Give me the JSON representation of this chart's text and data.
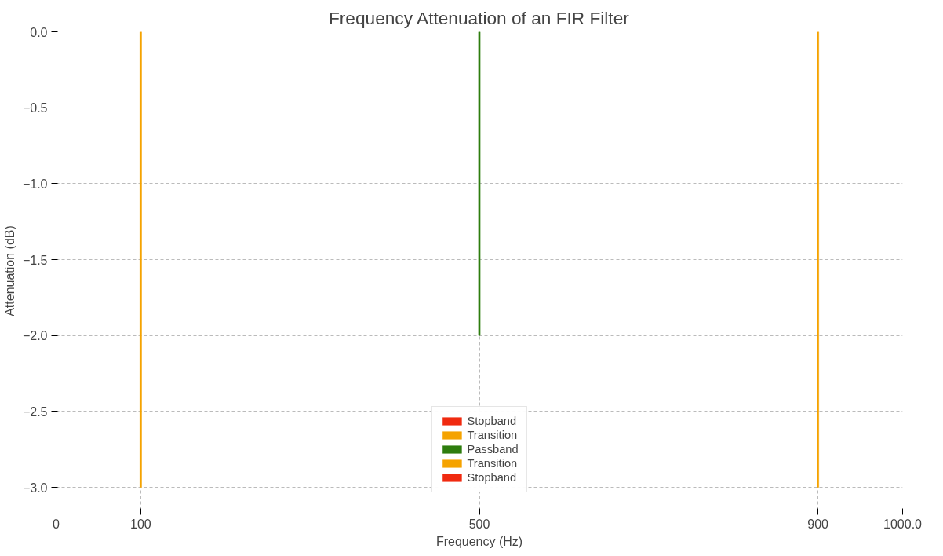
{
  "chart_data": {
    "type": "bar",
    "title": "Frequency Attenuation of an FIR Filter",
    "xlabel": "Frequency (Hz)",
    "ylabel": "Attenuation (dB)",
    "series": [
      {
        "name": "Stopband",
        "color": "#f02a10"
      },
      {
        "name": "Transition",
        "color": "#f5a300",
        "x": [
          100
        ],
        "values": [
          -3.0
        ]
      },
      {
        "name": "Passband",
        "color": "#2e7d0e",
        "x": [
          500
        ],
        "values": [
          -2.0
        ]
      },
      {
        "name": "Transition",
        "color": "#f5a300",
        "x": [
          900
        ],
        "values": [
          -3.0
        ]
      },
      {
        "name": "Stopband",
        "color": "#f02a10"
      }
    ],
    "xlim": [
      0,
      1000
    ],
    "xticks": [
      0,
      100,
      500,
      900,
      {
        "value": 1000,
        "label": "1000.0"
      }
    ],
    "ylim": [
      -3.15,
      0
    ],
    "yticks": [
      {
        "value": 0,
        "label": "0.0"
      },
      {
        "value": -0.5,
        "label": "−0.5"
      },
      {
        "value": -1.0,
        "label": "−1.0"
      },
      {
        "value": -1.5,
        "label": "−1.5"
      },
      {
        "value": -2.0,
        "label": "−2.0"
      },
      {
        "value": -2.5,
        "label": "−2.5"
      },
      {
        "value": -3.0,
        "label": "−3.0"
      }
    ],
    "grid": true,
    "legend": "bottom"
  }
}
